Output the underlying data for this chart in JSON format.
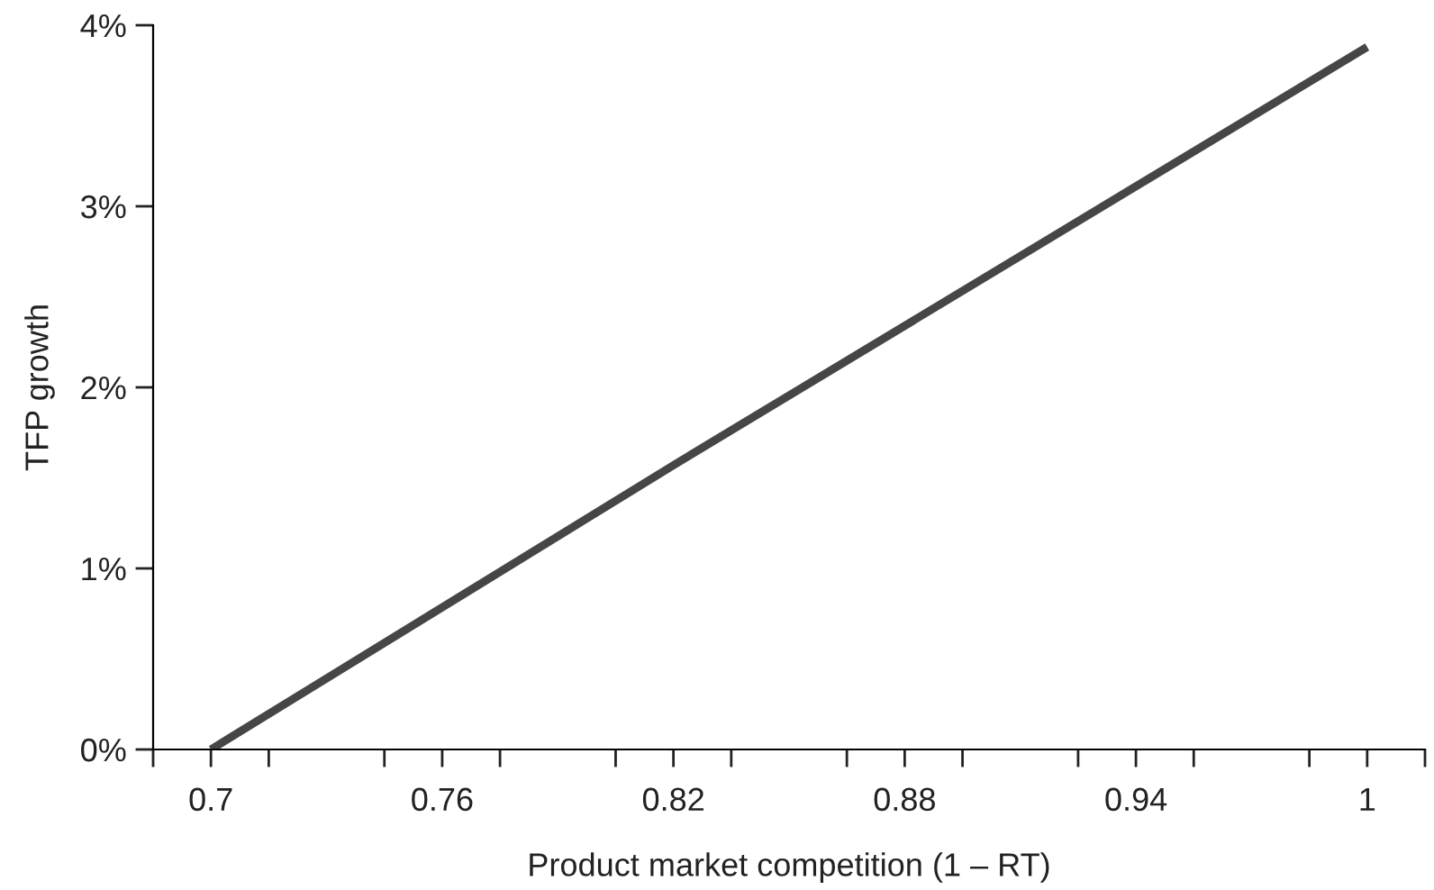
{
  "chart_data": {
    "type": "line",
    "xlabel": "Product market competition (1 – RT)",
    "ylabel": "TFP growth",
    "x": [
      0.7,
      0.82,
      1.0
    ],
    "series": [
      {
        "color": "#464646",
        "values": [
          0,
          1.57,
          3.88
        ]
      }
    ],
    "xlim": [
      0.685,
      1.015
    ],
    "xticks": [
      {
        "value": 0.685,
        "label": null
      },
      {
        "value": 0.7,
        "label": "0.7"
      },
      {
        "value": 0.715,
        "label": null
      },
      {
        "value": 0.745,
        "label": null
      },
      {
        "value": 0.76,
        "label": "0.76"
      },
      {
        "value": 0.775,
        "label": null
      },
      {
        "value": 0.805,
        "label": null
      },
      {
        "value": 0.82,
        "label": "0.82"
      },
      {
        "value": 0.835,
        "label": null
      },
      {
        "value": 0.865,
        "label": null
      },
      {
        "value": 0.88,
        "label": "0.88"
      },
      {
        "value": 0.895,
        "label": null
      },
      {
        "value": 0.925,
        "label": null
      },
      {
        "value": 0.94,
        "label": "0.94"
      },
      {
        "value": 0.955,
        "label": null
      },
      {
        "value": 0.985,
        "label": null
      },
      {
        "value": 1,
        "label": "1"
      },
      {
        "value": 1.015,
        "label": null
      }
    ],
    "ylim": [
      0,
      4
    ],
    "yticks": [
      {
        "value": 0,
        "label": "0%"
      },
      {
        "value": 1,
        "label": "1%"
      },
      {
        "value": 2,
        "label": "2%"
      },
      {
        "value": 3,
        "label": "3%"
      },
      {
        "value": 4,
        "label": "4%"
      }
    ],
    "grid": false,
    "legend": false,
    "marker": "none",
    "line_style": "solid"
  }
}
